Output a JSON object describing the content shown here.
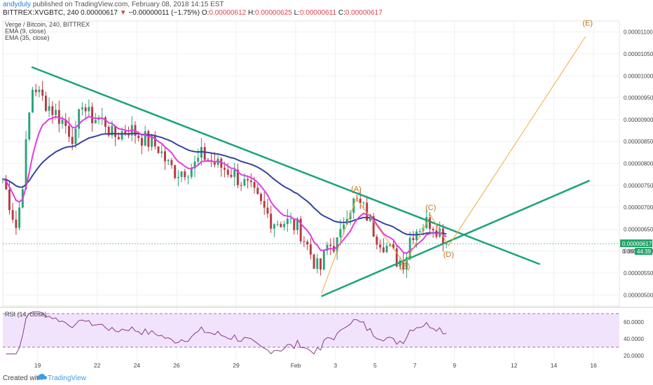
{
  "header": {
    "author": "andyduly",
    "published": "published on TradingView.com, February 08, 2018 14:15 EST",
    "symbol_line_prefix": "BITTREX:XVGBTC, 240",
    "symbol_price": "0.00000617",
    "arrow": "▼",
    "change": "−0.00000011 (−1.75%)",
    "o_label": "O:",
    "o_value": "0.00000612",
    "h_label": "H:",
    "h_value": "0.00000625",
    "l_label": "L:",
    "l_value": "0.00000611",
    "c_label": "C:",
    "c_value": "0.00000617"
  },
  "footer": {
    "created_with": "Created with",
    "brand": "TradingView"
  },
  "colors": {
    "up": "#2aa37a",
    "down": "#b83a42",
    "ema_fast": "#e03ce0",
    "ema_slow": "#34449a",
    "trendline": "#1aa37a",
    "projection": "#f2a93b",
    "rsi": "#8a3a8a",
    "rsi_band": "#f1e3fb",
    "price_badge": "#22a36a"
  },
  "chart_data": [
    {
      "type": "candlestick",
      "legend": [
        "Verge / Bitcoin, 240, BITTREX",
        "EMA (9, close)",
        "EMA (35, close)"
      ],
      "y_axis": {
        "ticks": [
          "0.00001100",
          "0.00001050",
          "0.00001000",
          "0.00000950",
          "0.00000900",
          "0.00000850",
          "0.00000800",
          "0.00000750",
          "0.00000700",
          "0.00000650",
          "0.00000600",
          "0.00000550",
          "0.00000500"
        ],
        "range": [
          4.75e-06,
          1.125e-05
        ],
        "current_price_label": "0.00000617",
        "countdown_label": "44:39",
        "partial_label": "0.000"
      },
      "x_axis": {
        "ticks": [
          {
            "label": "19",
            "day": 0
          },
          {
            "label": "22",
            "day": 3
          },
          {
            "label": "24",
            "day": 5
          },
          {
            "label": "26",
            "day": 7
          },
          {
            "label": "29",
            "day": 10
          },
          {
            "label": "Feb",
            "day": 13
          },
          {
            "label": "3",
            "day": 15
          },
          {
            "label": "5",
            "day": 17
          },
          {
            "label": "7",
            "day": 19
          },
          {
            "label": "9",
            "day": 21
          },
          {
            "label": "12",
            "day": 24
          },
          {
            "label": "14",
            "day": 26
          },
          {
            "label": "16",
            "day": 28
          }
        ],
        "range_days": [
          -1.75,
          29.3
        ]
      },
      "waves": [
        {
          "label": "(A)",
          "day": 16.05,
          "price": 7.36e-06
        },
        {
          "label": "(B)",
          "day": 18.5,
          "price": 5.6e-06
        },
        {
          "label": "(C)",
          "day": 19.8,
          "price": 6.94e-06
        },
        {
          "label": "(D)",
          "day": 20.7,
          "price": 5.87e-06
        },
        {
          "label": "(E)",
          "day": 27.7,
          "price": 1.115e-05
        }
      ],
      "trendlines": [
        {
          "name": "upper",
          "from": {
            "day": -0.3,
            "price": 1.02e-05
          },
          "to": {
            "day": 25.3,
            "price": 5.7e-06
          }
        },
        {
          "name": "lower",
          "from": {
            "day": 14.3,
            "price": 4.97e-06
          },
          "to": {
            "day": 27.8,
            "price": 7.61e-06
          }
        }
      ],
      "projection_path": [
        {
          "day": 14.3,
          "price": 5.03e-06
        },
        {
          "day": 16.05,
          "price": 7.2e-06
        },
        {
          "day": 18.5,
          "price": 5.71e-06
        },
        {
          "day": 19.8,
          "price": 6.82e-06
        },
        {
          "day": 20.7,
          "price": 6.12e-06
        },
        {
          "day": 27.6,
          "price": 1.09e-05
        }
      ],
      "candle_step_days": 0.1667
    },
    {
      "type": "line",
      "legend": [
        "RSI (14, close)"
      ],
      "y_axis": {
        "ticks": [
          "60.0000",
          "40.0000",
          "20.0000"
        ],
        "range": [
          15,
          75
        ],
        "band": [
          30,
          70
        ]
      },
      "series_name": "RSI (14, close)"
    }
  ]
}
